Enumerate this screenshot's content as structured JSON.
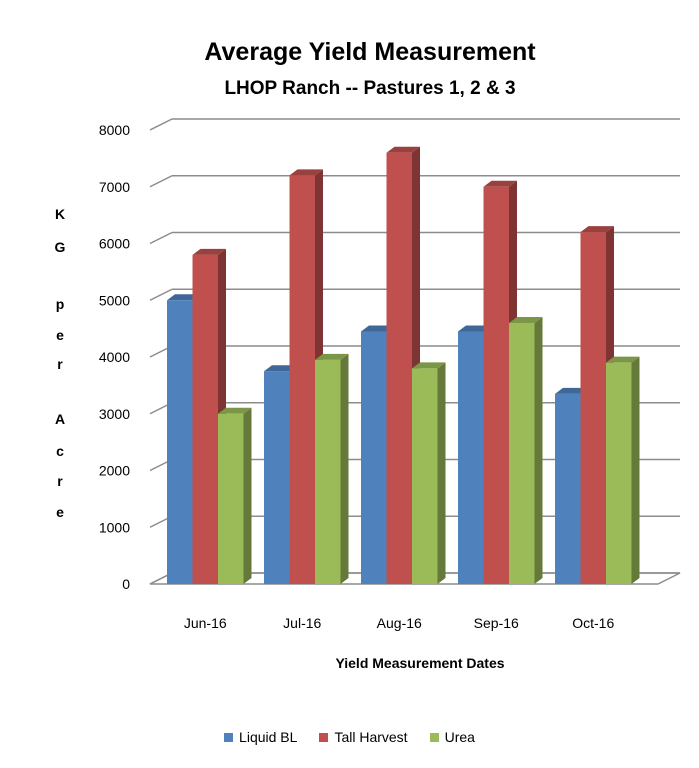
{
  "chart_data": {
    "type": "bar",
    "title": "Average Yield Measurement",
    "subtitle": "LHOP Ranch -- Pastures 1, 2 & 3",
    "xlabel": "Yield Measurement Dates",
    "ylabel_letters": [
      "K",
      "G",
      "p",
      "e",
      "r",
      "A",
      "c",
      "r",
      "e"
    ],
    "ylabel": "KG per Acre",
    "categories": [
      "Jun-16",
      "Jul-16",
      "Aug-16",
      "Sep-16",
      "Oct-16"
    ],
    "ylim": [
      0,
      8000
    ],
    "yticks": [
      0,
      1000,
      2000,
      3000,
      4000,
      5000,
      6000,
      7000,
      8000
    ],
    "grid": true,
    "style": "3d-clustered-column",
    "legend_position": "bottom",
    "series": [
      {
        "name": "Liquid BL",
        "color": "#4f81bd",
        "values": [
          5000,
          3750,
          4450,
          4450,
          3350
        ]
      },
      {
        "name": "Tall Harvest",
        "color": "#c0504d",
        "values": [
          5800,
          7200,
          7600,
          7000,
          6200
        ]
      },
      {
        "name": "Urea",
        "color": "#9bbb59",
        "values": [
          3000,
          3950,
          3800,
          4600,
          3900
        ]
      }
    ]
  }
}
